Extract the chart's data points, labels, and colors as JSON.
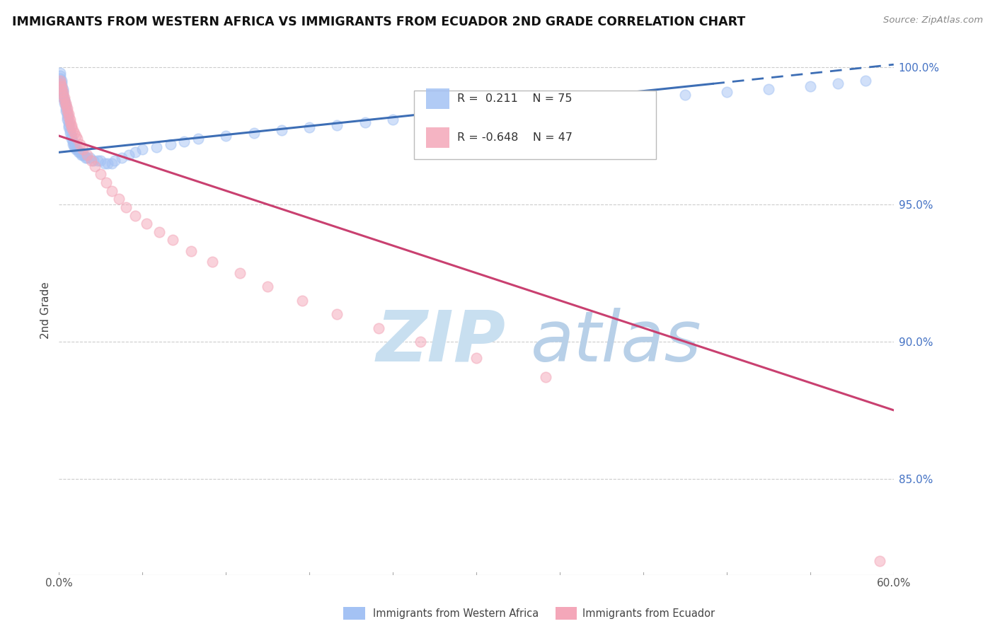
{
  "title": "IMMIGRANTS FROM WESTERN AFRICA VS IMMIGRANTS FROM ECUADOR 2ND GRADE CORRELATION CHART",
  "source_text": "Source: ZipAtlas.com",
  "ylabel": "2nd Grade",
  "xmin": 0.0,
  "xmax": 0.6,
  "ymin": 0.815,
  "ymax": 1.008,
  "yticks": [
    0.85,
    0.9,
    0.95,
    1.0
  ],
  "ytick_labels": [
    "85.0%",
    "90.0%",
    "95.0%",
    "100.0%"
  ],
  "blue_R": 0.211,
  "blue_N": 75,
  "pink_R": -0.648,
  "pink_N": 47,
  "blue_color": "#a4c2f4",
  "pink_color": "#f4a7b9",
  "blue_line_color": "#3d6eb5",
  "pink_line_color": "#c94070",
  "watermark_zip_color": "#c8dff0",
  "watermark_atlas_color": "#b8d0e8",
  "blue_line_x": [
    0.0,
    0.47,
    0.6
  ],
  "blue_line_y": [
    0.969,
    0.994,
    1.001
  ],
  "blue_line_solid_end": 0.47,
  "pink_line_x": [
    0.0,
    0.6
  ],
  "pink_line_y": [
    0.975,
    0.875
  ],
  "blue_scatter_x": [
    0.001,
    0.001,
    0.001,
    0.002,
    0.002,
    0.002,
    0.003,
    0.003,
    0.003,
    0.003,
    0.004,
    0.004,
    0.004,
    0.005,
    0.005,
    0.005,
    0.006,
    0.006,
    0.006,
    0.007,
    0.007,
    0.007,
    0.008,
    0.008,
    0.009,
    0.009,
    0.01,
    0.01,
    0.011,
    0.011,
    0.012,
    0.013,
    0.014,
    0.015,
    0.016,
    0.017,
    0.018,
    0.019,
    0.02,
    0.022,
    0.025,
    0.028,
    0.03,
    0.033,
    0.035,
    0.038,
    0.04,
    0.045,
    0.05,
    0.055,
    0.06,
    0.07,
    0.08,
    0.09,
    0.1,
    0.12,
    0.14,
    0.16,
    0.18,
    0.2,
    0.22,
    0.24,
    0.26,
    0.28,
    0.3,
    0.33,
    0.36,
    0.39,
    0.42,
    0.45,
    0.48,
    0.51,
    0.54,
    0.56,
    0.58
  ],
  "blue_scatter_y": [
    0.998,
    0.997,
    0.996,
    0.995,
    0.994,
    0.993,
    0.992,
    0.991,
    0.99,
    0.989,
    0.988,
    0.988,
    0.987,
    0.986,
    0.985,
    0.984,
    0.983,
    0.982,
    0.981,
    0.98,
    0.979,
    0.978,
    0.977,
    0.976,
    0.975,
    0.974,
    0.973,
    0.972,
    0.972,
    0.971,
    0.97,
    0.97,
    0.969,
    0.969,
    0.968,
    0.968,
    0.968,
    0.967,
    0.967,
    0.967,
    0.966,
    0.966,
    0.966,
    0.965,
    0.965,
    0.965,
    0.966,
    0.967,
    0.968,
    0.969,
    0.97,
    0.971,
    0.972,
    0.973,
    0.974,
    0.975,
    0.976,
    0.977,
    0.978,
    0.979,
    0.98,
    0.981,
    0.982,
    0.983,
    0.984,
    0.985,
    0.986,
    0.987,
    0.988,
    0.99,
    0.991,
    0.992,
    0.993,
    0.994,
    0.995
  ],
  "pink_scatter_x": [
    0.001,
    0.001,
    0.002,
    0.002,
    0.003,
    0.003,
    0.004,
    0.004,
    0.005,
    0.005,
    0.006,
    0.006,
    0.007,
    0.007,
    0.008,
    0.008,
    0.009,
    0.009,
    0.01,
    0.011,
    0.012,
    0.013,
    0.015,
    0.017,
    0.02,
    0.023,
    0.026,
    0.03,
    0.034,
    0.038,
    0.043,
    0.048,
    0.055,
    0.063,
    0.072,
    0.082,
    0.095,
    0.11,
    0.13,
    0.15,
    0.175,
    0.2,
    0.23,
    0.26,
    0.3,
    0.35,
    0.59
  ],
  "pink_scatter_y": [
    0.995,
    0.994,
    0.993,
    0.992,
    0.991,
    0.99,
    0.989,
    0.988,
    0.987,
    0.986,
    0.985,
    0.984,
    0.983,
    0.982,
    0.981,
    0.98,
    0.979,
    0.978,
    0.977,
    0.976,
    0.975,
    0.974,
    0.972,
    0.97,
    0.968,
    0.966,
    0.964,
    0.961,
    0.958,
    0.955,
    0.952,
    0.949,
    0.946,
    0.943,
    0.94,
    0.937,
    0.933,
    0.929,
    0.925,
    0.92,
    0.915,
    0.91,
    0.905,
    0.9,
    0.894,
    0.887,
    0.82
  ]
}
